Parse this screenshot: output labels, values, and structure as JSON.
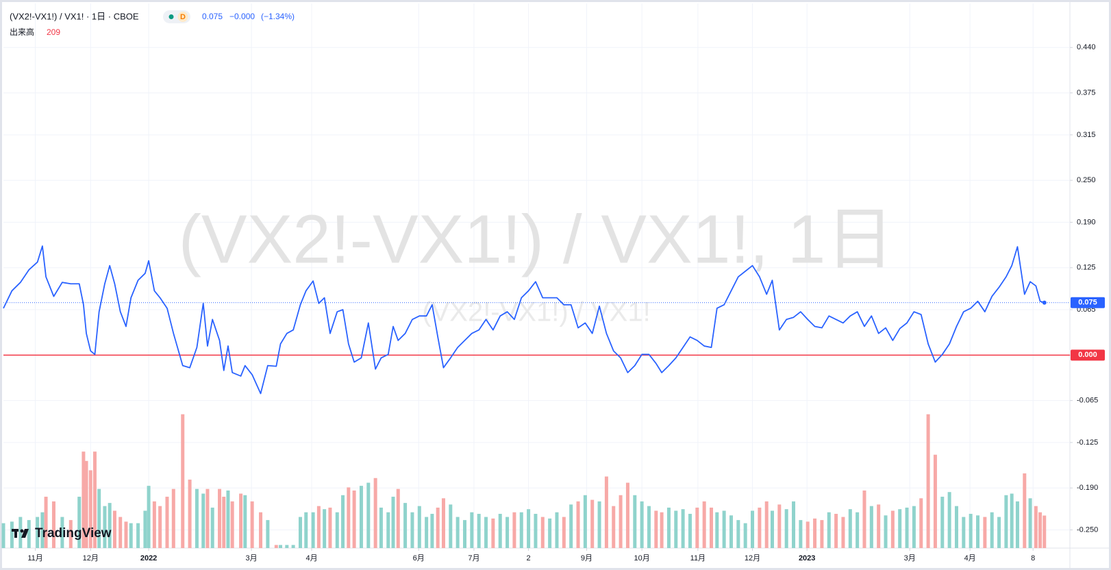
{
  "chart_data": {
    "type": "line",
    "title": "(VX2!-VX1!) / VX1! · 1日 · CBOE",
    "interval_badge": "D",
    "change": "−0.000",
    "change_pct": "(−1.34%)",
    "watermark": "(VX2!-VX1!) / VX1!, 1日",
    "watermark_sub": "(VX2!-VX1!) / VX1!",
    "logo": "TradingView",
    "grid": true,
    "x": [
      0,
      12,
      24,
      36,
      48,
      55,
      60,
      71,
      83,
      95,
      107,
      113,
      117,
      123,
      129,
      135,
      143,
      150,
      157,
      165,
      173,
      180,
      190,
      200,
      205,
      213,
      221,
      231,
      240,
      253,
      263,
      273,
      282,
      288,
      295,
      305,
      311,
      317,
      323,
      335,
      341,
      351,
      363,
      373,
      385,
      391,
      400,
      409,
      419,
      427,
      437,
      445,
      453,
      461,
      471,
      479,
      487,
      495,
      505,
      515,
      525,
      533,
      543,
      550,
      557,
      567,
      577,
      587,
      597,
      605,
      613,
      621,
      631,
      641,
      651,
      661,
      671,
      681,
      691,
      701,
      711,
      721,
      731,
      741,
      751,
      761,
      771,
      781,
      791,
      801,
      811,
      821,
      831,
      841,
      851,
      861,
      871,
      881,
      891,
      901,
      911,
      921,
      929,
      939,
      949,
      959,
      969,
      979,
      989,
      999,
      1007,
      1017,
      1027,
      1037,
      1047,
      1057,
      1067,
      1077,
      1085,
      1095,
      1105,
      1115,
      1125,
      1135,
      1145,
      1155,
      1165,
      1175,
      1185,
      1195,
      1205,
      1215,
      1225,
      1235,
      1245,
      1255,
      1265,
      1275,
      1285,
      1295,
      1305,
      1315,
      1325,
      1335,
      1345,
      1355,
      1365,
      1375,
      1385,
      1395,
      1405,
      1415,
      1423,
      1431,
      1441,
      1449,
      1457,
      1463,
      1469
    ],
    "xlim": [
      0,
      1505
    ],
    "xticks": [
      {
        "value": 45,
        "label": "11月"
      },
      {
        "value": 123,
        "label": "12月"
      },
      {
        "value": 205,
        "label": "2022"
      },
      {
        "value": 350,
        "label": "3月"
      },
      {
        "value": 435,
        "label": "4月"
      },
      {
        "value": 586,
        "label": "6月"
      },
      {
        "value": 664,
        "label": "7月"
      },
      {
        "value": 741,
        "label": "2"
      },
      {
        "value": 823,
        "label": "9月"
      },
      {
        "value": 901,
        "label": "10月"
      },
      {
        "value": 980,
        "label": "11月"
      },
      {
        "value": 1057,
        "label": "12月"
      },
      {
        "value": 1134,
        "label": "2023"
      },
      {
        "value": 1279,
        "label": "3月"
      },
      {
        "value": 1364,
        "label": "4月"
      },
      {
        "value": 1453,
        "label": "8"
      }
    ],
    "ylim": [
      -0.276,
      0.503
    ],
    "yticks": [
      {
        "value": 0.44,
        "label": "0.440"
      },
      0.375,
      0.315,
      {
        "value": 0.25,
        "label": "0.250"
      },
      {
        "value": 0.19,
        "label": "0.190"
      },
      0.125,
      0.065,
      {
        "value": 0,
        "label": "0.000"
      },
      -0.065,
      -0.125,
      {
        "value": -0.19,
        "label": "-0.190"
      },
      {
        "value": -0.25,
        "label": "-0.250"
      }
    ],
    "hlines": [
      {
        "value": 0,
        "label": "0.000",
        "color": "#f23645"
      }
    ],
    "series": [
      {
        "color": "#2962ff",
        "values": [
          0.067,
          0.092,
          0.104,
          0.122,
          0.133,
          0.156,
          0.112,
          0.084,
          0.104,
          0.102,
          0.102,
          0.072,
          0.031,
          0.006,
          0.001,
          0.062,
          0.102,
          0.128,
          0.102,
          0.062,
          0.041,
          0.082,
          0.107,
          0.117,
          0.135,
          0.092,
          0.082,
          0.067,
          0.031,
          -0.015,
          -0.018,
          0.011,
          0.074,
          0.013,
          0.051,
          0.021,
          -0.022,
          0.013,
          -0.025,
          -0.03,
          -0.015,
          -0.028,
          -0.055,
          -0.015,
          -0.016,
          0.016,
          0.031,
          0.036,
          0.072,
          0.092,
          0.106,
          0.074,
          0.082,
          0.031,
          0.062,
          0.065,
          0.016,
          -0.01,
          -0.004,
          0.046,
          -0.02,
          -0.004,
          0.001,
          0.041,
          0.021,
          0.031,
          0.051,
          0.056,
          0.056,
          0.072,
          0.026,
          -0.018,
          -0.004,
          0.011,
          0.021,
          0.031,
          0.036,
          0.051,
          0.036,
          0.056,
          0.062,
          0.051,
          0.082,
          0.092,
          0.105,
          0.082,
          0.082,
          0.082,
          0.072,
          0.072,
          0.039,
          0.046,
          0.031,
          0.07,
          0.031,
          0.006,
          -0.004,
          -0.025,
          -0.015,
          0.001,
          0.001,
          -0.012,
          -0.025,
          -0.015,
          -0.004,
          0.011,
          0.026,
          0.021,
          0.013,
          0.011,
          0.067,
          0.072,
          0.092,
          0.112,
          0.12,
          0.128,
          0.112,
          0.087,
          0.107,
          0.036,
          0.051,
          0.054,
          0.062,
          0.051,
          0.041,
          0.039,
          0.056,
          0.051,
          0.046,
          0.056,
          0.062,
          0.041,
          0.056,
          0.031,
          0.039,
          0.021,
          0.038,
          0.046,
          0.062,
          0.058,
          0.016,
          -0.01,
          0.001,
          0.016,
          0.041,
          0.062,
          0.067,
          0.077,
          0.062,
          0.084,
          0.097,
          0.112,
          0.128,
          0.155,
          0.087,
          0.105,
          0.099,
          0.077,
          0.075
        ]
      },
      {
        "name": "出来高",
        "axis": "volume",
        "up_color": "#8fd3cc",
        "down_color": "#f7a9a7",
        "color": "#f23645",
        "vlim": [
          0,
          3500
        ],
        "values": [
          160,
          170,
          200,
          180,
          200,
          230,
          330,
          300,
          200,
          180,
          330,
          620,
          560,
          500,
          620,
          380,
          270,
          290,
          240,
          200,
          170,
          160,
          160,
          240,
          400,
          300,
          270,
          330,
          380,
          860,
          440,
          380,
          350,
          380,
          260,
          380,
          330,
          370,
          300,
          350,
          340,
          300,
          230,
          180,
          20,
          20,
          20,
          20,
          200,
          230,
          230,
          270,
          250,
          260,
          230,
          340,
          390,
          370,
          400,
          420,
          450,
          260,
          230,
          330,
          380,
          290,
          230,
          270,
          200,
          220,
          260,
          320,
          280,
          200,
          180,
          230,
          220,
          200,
          190,
          220,
          200,
          230,
          230,
          250,
          220,
          200,
          190,
          230,
          200,
          280,
          300,
          340,
          310,
          300,
          460,
          270,
          340,
          420,
          340,
          300,
          270,
          240,
          230,
          260,
          240,
          250,
          220,
          260,
          300,
          260,
          230,
          240,
          210,
          180,
          160,
          240,
          260,
          300,
          240,
          280,
          250,
          300,
          180,
          170,
          190,
          180,
          230,
          220,
          200,
          250,
          230,
          370,
          270,
          280,
          210,
          240,
          250,
          260,
          270,
          320,
          860,
          600,
          330,
          360,
          270,
          200,
          220,
          210,
          200,
          230,
          200,
          340,
          350,
          300,
          480,
          320,
          270,
          230,
          209
        ]
      }
    ]
  }
}
